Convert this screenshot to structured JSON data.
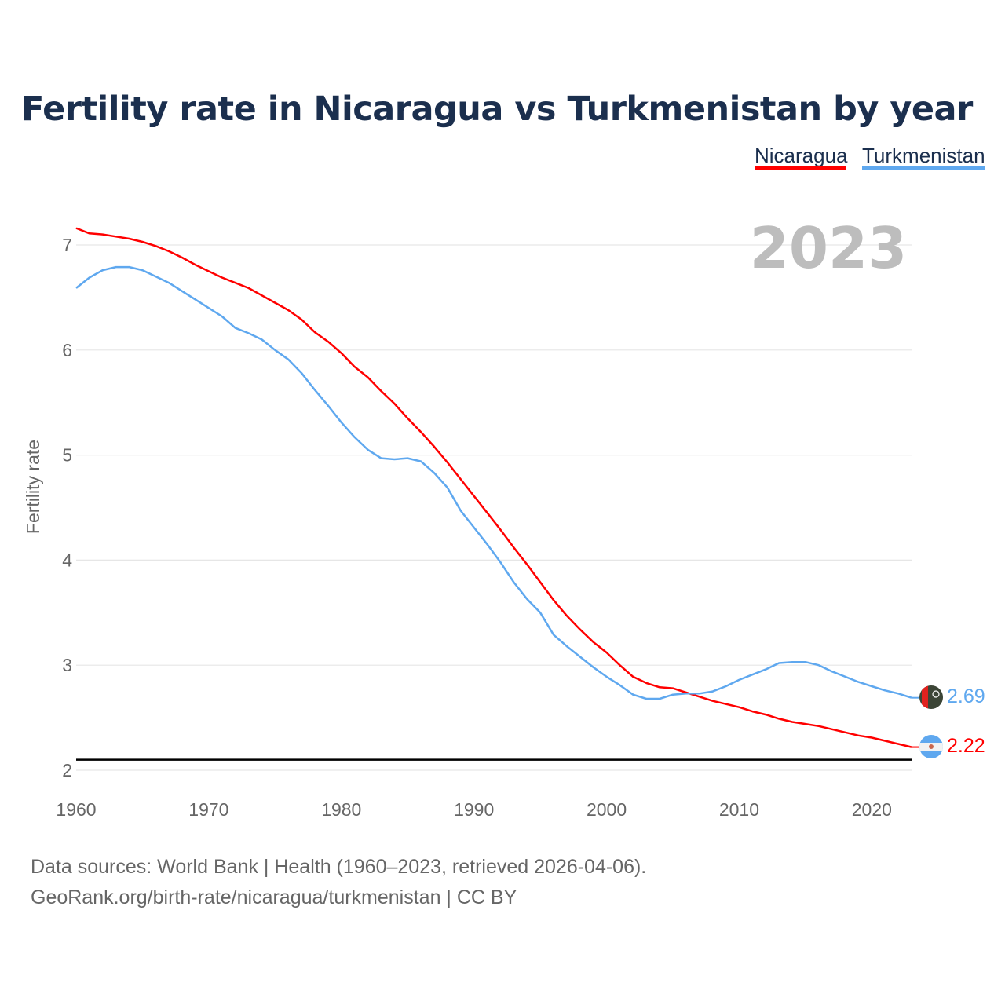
{
  "title": "Fertility rate in Nicaragua vs Turkmenistan by year",
  "current_year": "2023",
  "footer": {
    "line1": "Data sources: World Bank | Health (1960–2023, retrieved 2026-04-06).",
    "line2": "GeoRank.org/birth-rate/nicaragua/turkmenistan | CC BY"
  },
  "chart_data": {
    "type": "line",
    "title": "Fertility rate in Nicaragua vs Turkmenistan by year",
    "xlabel": "",
    "ylabel": "Fertility rate",
    "xlim": [
      1960,
      2023
    ],
    "ylim": [
      2,
      7
    ],
    "x_ticks": [
      "1960",
      "1970",
      "1980",
      "1990",
      "2000",
      "2010",
      "2020"
    ],
    "y_ticks": [
      "2",
      "3",
      "4",
      "5",
      "6",
      "7"
    ],
    "grid": true,
    "legend_position": "top-right",
    "reference_line": {
      "y": 2.1,
      "color": "#000000"
    },
    "x": [
      1960,
      1961,
      1962,
      1963,
      1964,
      1965,
      1966,
      1967,
      1968,
      1969,
      1970,
      1971,
      1972,
      1973,
      1974,
      1975,
      1976,
      1977,
      1978,
      1979,
      1980,
      1981,
      1982,
      1983,
      1984,
      1985,
      1986,
      1987,
      1988,
      1989,
      1990,
      1991,
      1992,
      1993,
      1994,
      1995,
      1996,
      1997,
      1998,
      1999,
      2000,
      2001,
      2002,
      2003,
      2004,
      2005,
      2006,
      2007,
      2008,
      2009,
      2010,
      2011,
      2012,
      2013,
      2014,
      2015,
      2016,
      2017,
      2018,
      2019,
      2020,
      2021,
      2022,
      2023
    ],
    "series": [
      {
        "name": "Nicaragua",
        "color": "#ff0000",
        "end_label": "2.22",
        "values": [
          7.16,
          7.11,
          7.1,
          7.08,
          7.06,
          7.03,
          6.99,
          6.94,
          6.88,
          6.81,
          6.75,
          6.69,
          6.64,
          6.59,
          6.52,
          6.45,
          6.38,
          6.29,
          6.17,
          6.08,
          5.97,
          5.84,
          5.74,
          5.61,
          5.49,
          5.35,
          5.22,
          5.08,
          4.93,
          4.77,
          4.61,
          4.45,
          4.29,
          4.12,
          3.96,
          3.79,
          3.62,
          3.47,
          3.34,
          3.22,
          3.12,
          3.0,
          2.89,
          2.83,
          2.79,
          2.78,
          2.74,
          2.7,
          2.66,
          2.63,
          2.6,
          2.56,
          2.53,
          2.49,
          2.46,
          2.44,
          2.42,
          2.39,
          2.36,
          2.33,
          2.31,
          2.28,
          2.25,
          2.22
        ]
      },
      {
        "name": "Turkmenistan",
        "color": "#5fa8ef",
        "end_label": "2.69",
        "values": [
          6.59,
          6.69,
          6.76,
          6.79,
          6.79,
          6.76,
          6.7,
          6.64,
          6.56,
          6.48,
          6.4,
          6.32,
          6.21,
          6.16,
          6.1,
          6.0,
          5.91,
          5.78,
          5.62,
          5.47,
          5.31,
          5.17,
          5.05,
          4.97,
          4.96,
          4.97,
          4.94,
          4.83,
          4.69,
          4.47,
          4.31,
          4.15,
          3.98,
          3.79,
          3.63,
          3.5,
          3.29,
          3.18,
          3.08,
          2.98,
          2.89,
          2.81,
          2.72,
          2.68,
          2.68,
          2.72,
          2.73,
          2.73,
          2.75,
          2.8,
          2.86,
          2.91,
          2.96,
          3.02,
          3.03,
          3.03,
          3.0,
          2.94,
          2.89,
          2.84,
          2.8,
          2.76,
          2.73,
          2.69
        ]
      }
    ]
  }
}
